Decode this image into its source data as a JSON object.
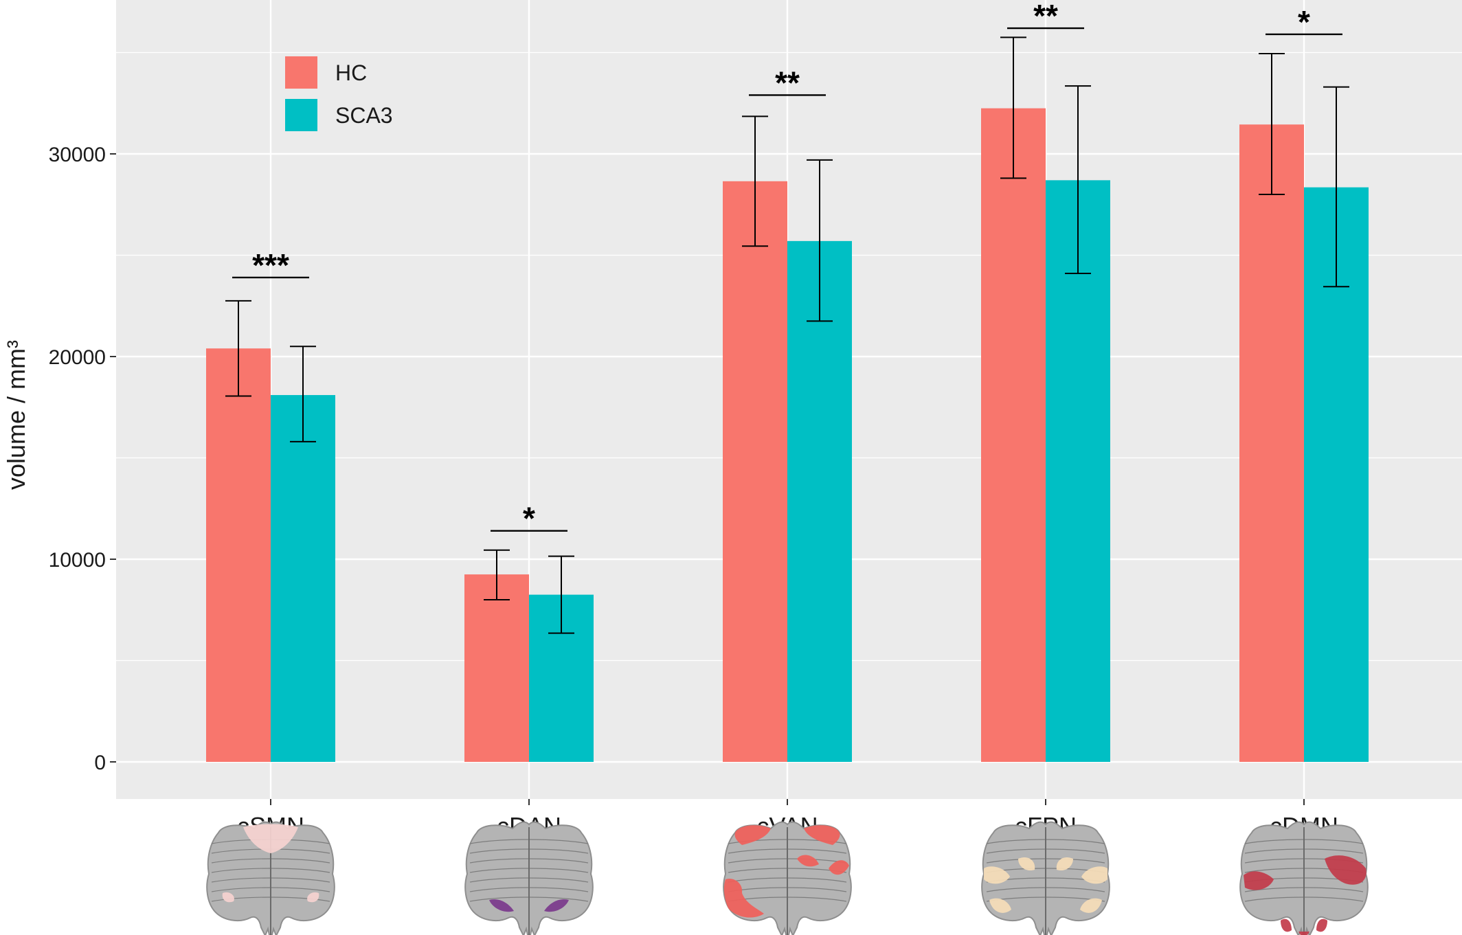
{
  "chart_data": {
    "type": "bar",
    "title": "",
    "xlabel": "",
    "ylabel": "volume / mm³",
    "ylim": [
      -1700,
      37000
    ],
    "yticks": [
      0,
      10000,
      20000,
      30000
    ],
    "ytick_labels": [
      "0",
      "10000",
      "20000",
      "30000"
    ],
    "grid": true,
    "legend_position": "top-left",
    "categories": [
      "cSMN",
      "cDAN",
      "cVAN",
      "cFPN",
      "cDMN"
    ],
    "series": [
      {
        "name": "HC",
        "color": "#F8766D",
        "values": [
          20400,
          9250,
          28650,
          32250,
          31450
        ],
        "error_low": [
          18050,
          8000,
          25450,
          28800,
          28000
        ],
        "error_high": [
          22750,
          10450,
          31850,
          35750,
          34950
        ]
      },
      {
        "name": "SCA3",
        "color": "#00BFC4",
        "values": [
          18100,
          8250,
          25700,
          28700,
          28350
        ],
        "error_low": [
          15800,
          6350,
          21750,
          24100,
          23450
        ],
        "error_high": [
          20500,
          10150,
          29700,
          33350,
          33300
        ]
      }
    ],
    "significance": [
      {
        "category": "cSMN",
        "label": "***",
        "y": 23900
      },
      {
        "category": "cDAN",
        "label": "*",
        "y": 11400
      },
      {
        "category": "cVAN",
        "label": "**",
        "y": 32900
      },
      {
        "category": "cFPN",
        "label": "**",
        "y": 36200
      },
      {
        "category": "cDMN",
        "label": "*",
        "y": 35900
      }
    ],
    "category_images": [
      {
        "category": "cSMN",
        "icon": "cerebellum-map-icon",
        "highlight_color": "#F6D3D0"
      },
      {
        "category": "cDAN",
        "icon": "cerebellum-map-icon",
        "highlight_color": "#7B3A8C"
      },
      {
        "category": "cVAN",
        "icon": "cerebellum-map-icon",
        "highlight_color": "#F0605A"
      },
      {
        "category": "cFPN",
        "icon": "cerebellum-map-icon",
        "highlight_color": "#F6DDB8"
      },
      {
        "category": "cDMN",
        "icon": "cerebellum-map-icon",
        "highlight_color": "#C23B4A"
      }
    ],
    "colors": {
      "panel_background": "#EBEBEB",
      "grid_line": "#FFFFFF",
      "text": "#1A1A1A"
    }
  }
}
